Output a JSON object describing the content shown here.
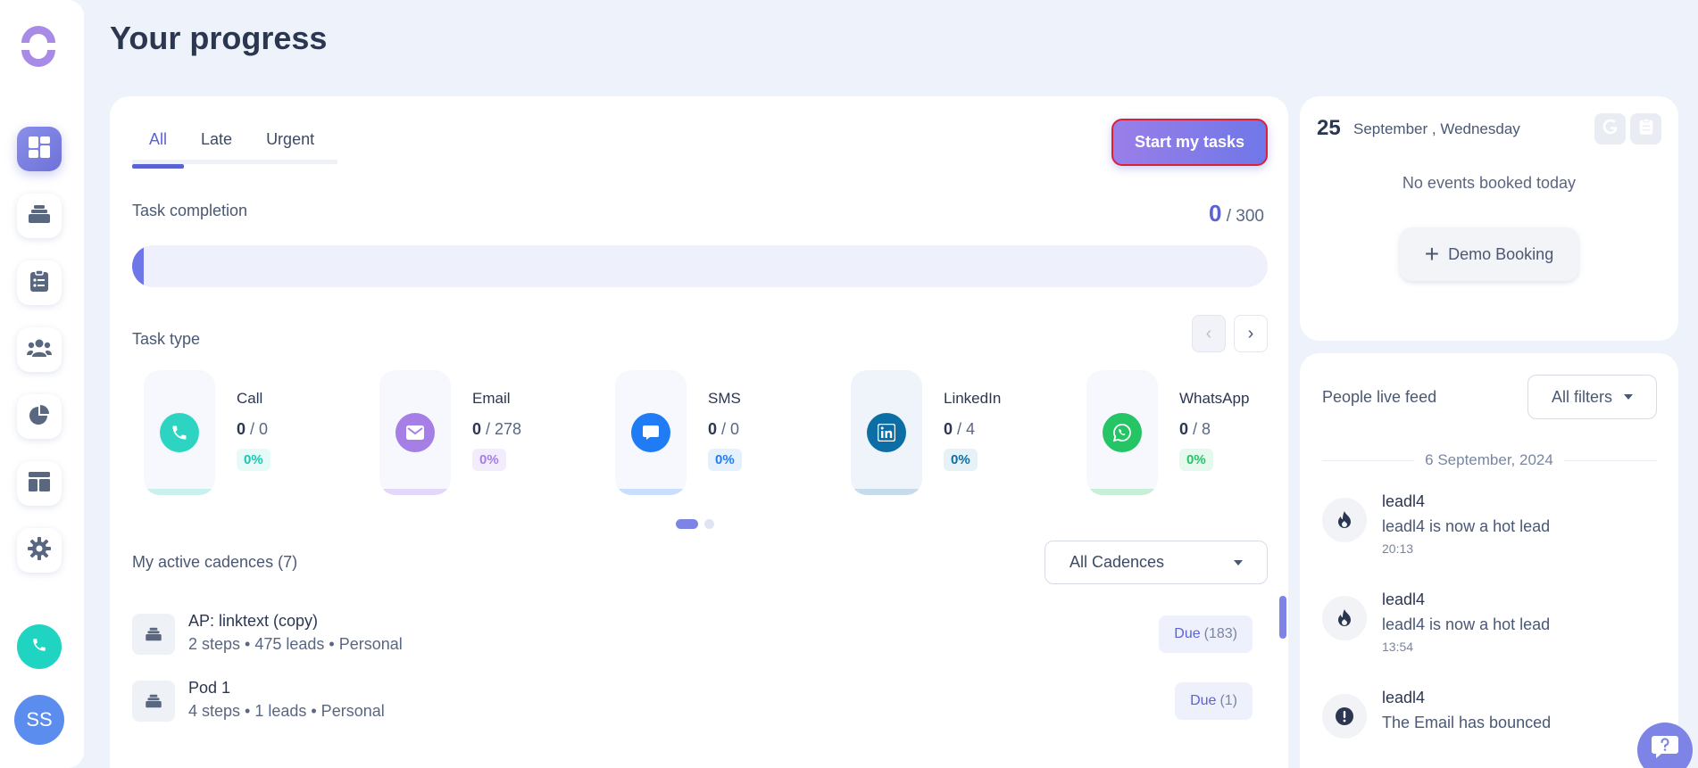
{
  "header": {
    "title": "Your progress"
  },
  "sidebar": {
    "items": [
      {
        "name": "dashboard",
        "icon": "dashboard-icon",
        "active": true
      },
      {
        "name": "cadences",
        "icon": "stack-icon",
        "active": false
      },
      {
        "name": "tasks",
        "icon": "clipboard-icon",
        "active": false
      },
      {
        "name": "people",
        "icon": "people-icon",
        "active": false
      },
      {
        "name": "reports",
        "icon": "pie-chart-icon",
        "active": false
      },
      {
        "name": "templates",
        "icon": "layout-icon",
        "active": false
      },
      {
        "name": "settings",
        "icon": "gear-icon",
        "active": false
      }
    ],
    "avatar_initials": "SS"
  },
  "tabs": [
    {
      "label": "All",
      "active": true
    },
    {
      "label": "Late",
      "active": false
    },
    {
      "label": "Urgent",
      "active": false
    }
  ],
  "start_button": "Start my tasks",
  "completion": {
    "label": "Task completion",
    "done": "0",
    "total": "/ 300",
    "progress_fraction": 0
  },
  "task_type": {
    "label": "Task type",
    "items": [
      {
        "name": "Call",
        "done": "0",
        "total": "/ 0",
        "pct": "0%",
        "icon": "phone-icon",
        "color": "#2ed4c2",
        "bar": "#c9f0ec",
        "pct_bg": "#e6fbf8",
        "pct_fg": "#16c7b4"
      },
      {
        "name": "Email",
        "done": "0",
        "total": "/ 278",
        "pct": "0%",
        "icon": "mail-icon",
        "color": "#a57ee6",
        "bar": "#e3d8fa",
        "pct_bg": "#f2ecfc",
        "pct_fg": "#a57ee6"
      },
      {
        "name": "SMS",
        "done": "0",
        "total": "/ 0",
        "pct": "0%",
        "icon": "message-icon",
        "color": "#1f7cf5",
        "bar": "#c9dffb",
        "pct_bg": "#e6f1fe",
        "pct_fg": "#1f7cf5"
      },
      {
        "name": "LinkedIn",
        "done": "0",
        "total": "/ 4",
        "pct": "0%",
        "icon": "linkedin-icon",
        "color": "#0c6ea5",
        "bar": "#c6dceb",
        "pct_bg": "#e6f1f8",
        "pct_fg": "#0c6ea5"
      },
      {
        "name": "WhatsApp",
        "done": "0",
        "total": "/ 8",
        "pct": "0%",
        "icon": "whatsapp-icon",
        "color": "#25c464",
        "bar": "#c8efd7",
        "pct_bg": "#e6f9ee",
        "pct_fg": "#25c464"
      }
    ]
  },
  "cadences": {
    "label": "My active cadences (7)",
    "filter": "All Cadences",
    "items": [
      {
        "title": "AP: linktext (copy)",
        "meta": "2 steps • 475 leads • Personal",
        "due_label": "Due",
        "due_count": "(183)"
      },
      {
        "title": "Pod 1",
        "meta": "4 steps • 1 leads • Personal",
        "due_label": "Due",
        "due_count": "(1)"
      }
    ]
  },
  "calendar": {
    "day": "25",
    "date": "September , Wednesday",
    "empty": "No events booked today",
    "button": "Demo Booking"
  },
  "feed": {
    "title": "People live feed",
    "filter": "All filters",
    "date": "6 September, 2024",
    "items": [
      {
        "name": "leadl4",
        "text": "leadl4 is now a hot lead",
        "time": "20:13",
        "icon": "flame-icon"
      },
      {
        "name": "leadl4",
        "text": "leadl4 is now a hot lead",
        "time": "13:54",
        "icon": "flame-icon"
      },
      {
        "name": "leadl4",
        "text": "The Email has bounced",
        "time": "",
        "icon": "alert-icon"
      }
    ]
  },
  "colors": {
    "accent": "#5b62d6",
    "brand_purple": "#7d84e6",
    "call_fab": "#1fd4c1"
  }
}
